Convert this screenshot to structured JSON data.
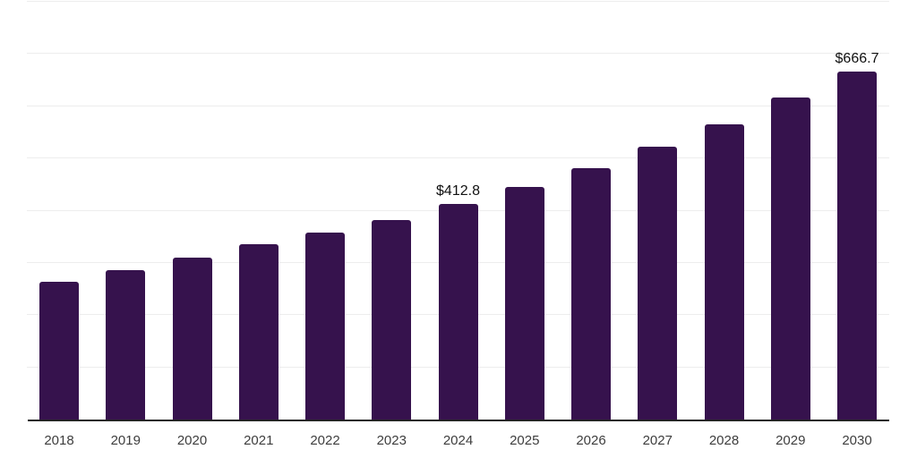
{
  "chart": {
    "colors": {
      "background": "#ffffff",
      "bar": "#36124D",
      "gridline": "#ededed",
      "axis_line": "#242424",
      "tick_label": "#3d3d3d",
      "data_label": "#111111"
    }
  },
  "chart_data": {
    "type": "bar",
    "title": "",
    "xlabel": "",
    "ylabel": "",
    "categories": [
      "2018",
      "2019",
      "2020",
      "2021",
      "2022",
      "2023",
      "2024",
      "2025",
      "2026",
      "2027",
      "2028",
      "2029",
      "2030"
    ],
    "values": [
      263.5,
      286.0,
      310.0,
      335.0,
      358.5,
      382.5,
      412.8,
      445.5,
      481.5,
      523.0,
      566.0,
      616.5,
      666.7
    ],
    "data_labels": [
      null,
      null,
      null,
      null,
      null,
      null,
      "$412.8",
      null,
      null,
      null,
      null,
      null,
      "$666.7"
    ],
    "ylim": [
      0,
      800
    ],
    "gridline_step": 100,
    "grid": true,
    "y_tick_labels_visible": false,
    "legend": false,
    "legend_position": "none"
  }
}
